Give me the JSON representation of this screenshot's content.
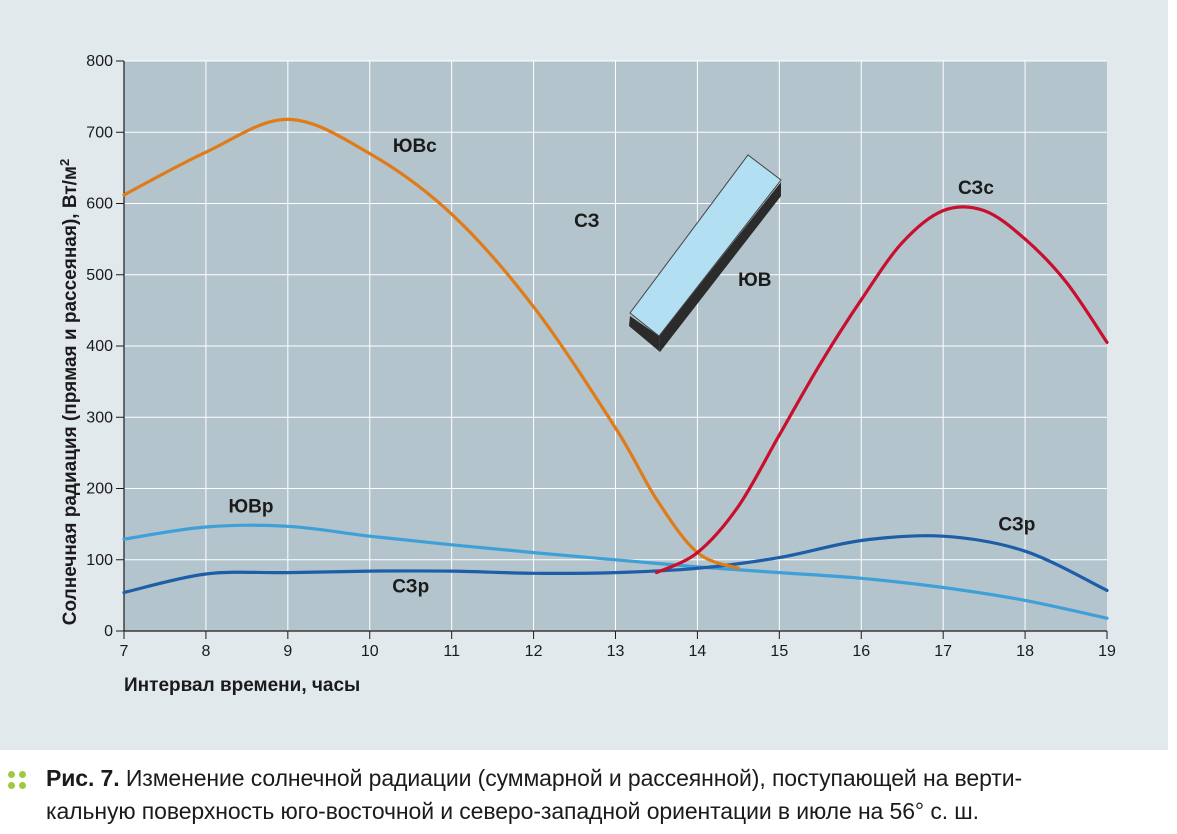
{
  "chart_data": {
    "type": "line",
    "xlabel": "Интервал времени, часы",
    "ylabel": "Солнечная радиация (прямая и рассеяная), Вт/м²",
    "xlim": [
      7,
      19
    ],
    "ylim": [
      0,
      800
    ],
    "x_ticks": [
      "7",
      "8",
      "9",
      "10",
      "11",
      "12",
      "13",
      "14",
      "15",
      "16",
      "17",
      "18",
      "19"
    ],
    "y_ticks": [
      "0",
      "100",
      "200",
      "300",
      "400",
      "500",
      "600",
      "700",
      "800"
    ],
    "grid": true,
    "series": [
      {
        "name": "ЮВс",
        "color": "#e07b1a",
        "points": [
          [
            7,
            612
          ],
          [
            8,
            672
          ],
          [
            9,
            718
          ],
          [
            10,
            670
          ],
          [
            11,
            585
          ],
          [
            12,
            455
          ],
          [
            13,
            285
          ],
          [
            13.5,
            185
          ],
          [
            14,
            110
          ],
          [
            14.5,
            88
          ]
        ]
      },
      {
        "name": "СЗс",
        "color": "#c8102e",
        "points": [
          [
            13.5,
            82
          ],
          [
            14,
            110
          ],
          [
            14.5,
            175
          ],
          [
            15,
            275
          ],
          [
            15.5,
            375
          ],
          [
            16,
            465
          ],
          [
            16.5,
            545
          ],
          [
            17,
            590
          ],
          [
            17.5,
            590
          ],
          [
            18,
            550
          ],
          [
            18.5,
            490
          ],
          [
            19,
            405
          ]
        ]
      },
      {
        "name": "ЮВр",
        "color": "#3fa0d8",
        "points": [
          [
            7,
            129
          ],
          [
            8,
            146
          ],
          [
            9,
            147
          ],
          [
            10,
            133
          ],
          [
            11,
            121
          ],
          [
            12,
            110
          ],
          [
            13,
            100
          ],
          [
            14,
            90
          ],
          [
            15,
            82
          ],
          [
            16,
            74
          ],
          [
            17,
            61
          ],
          [
            18,
            43
          ],
          [
            19,
            18
          ]
        ]
      },
      {
        "name": "СЗр",
        "color": "#1e5ea8",
        "points": [
          [
            7,
            54
          ],
          [
            8,
            80
          ],
          [
            9,
            82
          ],
          [
            10,
            84
          ],
          [
            11,
            84
          ],
          [
            12,
            81
          ],
          [
            13,
            82
          ],
          [
            14,
            88
          ],
          [
            15,
            103
          ],
          [
            16,
            127
          ],
          [
            17,
            133
          ],
          [
            18,
            112
          ],
          [
            19,
            57
          ]
        ]
      }
    ],
    "annotations": [
      {
        "text": "ЮВс",
        "x": 10.55,
        "y": 672
      },
      {
        "text": "СЗс",
        "x": 17.4,
        "y": 613
      },
      {
        "text": "ЮВр",
        "x": 8.55,
        "y": 166
      },
      {
        "text": "СЗр",
        "x": 10.5,
        "y": 54
      },
      {
        "text": "СЗр",
        "x": 17.9,
        "y": 141
      },
      {
        "text": "СЗ",
        "x": 12.65,
        "y": 567
      },
      {
        "text": "ЮВ",
        "x": 14.7,
        "y": 484
      }
    ]
  },
  "caption": {
    "label": "Рис. 7.",
    "line1": " Изменение солнечной радиации (суммарной и рассеянной), поступающей на верти-",
    "line2": "кальную поверхность юго-восточной и северо-западной ориентации в июле на 56° с. ш."
  },
  "colors": {
    "plot_bg": "#b3c4cc",
    "grid": "#ffffff",
    "text": "#1b1b1b",
    "building_face": "#b3dff3",
    "building_side": "#2b2b2b",
    "building_top": "#cfeaf7",
    "caption_dots": "#9ccb3b"
  }
}
